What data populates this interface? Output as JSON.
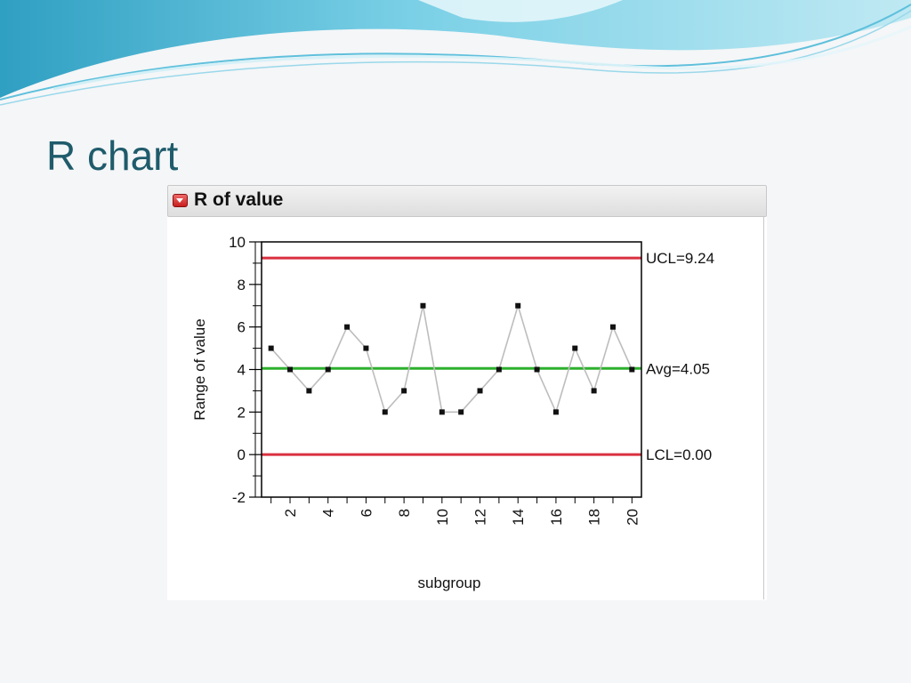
{
  "slide": {
    "title": "R chart"
  },
  "panel": {
    "title": "R of value"
  },
  "colors": {
    "limit_line": "#d9303f",
    "avg_line": "#2db02d",
    "series_line": "#bdbdbd",
    "marker": "#111111"
  },
  "chart_data": {
    "type": "line",
    "title": "R of value",
    "xlabel": "subgroup",
    "ylabel": "Range of value",
    "ylim": [
      -2,
      10
    ],
    "yticks": [
      -2,
      0,
      2,
      4,
      6,
      8,
      10
    ],
    "xlim": [
      0.5,
      20.5
    ],
    "xticks": [
      2,
      4,
      6,
      8,
      10,
      12,
      14,
      16,
      18,
      20
    ],
    "x": [
      1,
      2,
      3,
      4,
      5,
      6,
      7,
      8,
      9,
      10,
      11,
      12,
      13,
      14,
      15,
      16,
      17,
      18,
      19,
      20
    ],
    "y": [
      5,
      4,
      3,
      4,
      6,
      5,
      2,
      3,
      7,
      2,
      2,
      3,
      4,
      7,
      4,
      2,
      5,
      3,
      6,
      4
    ],
    "control_limits": [
      {
        "label": "UCL=9.24",
        "value": 9.24,
        "kind": "limit"
      },
      {
        "label": "Avg=4.05",
        "value": 4.05,
        "kind": "average"
      },
      {
        "label": "LCL=0.00",
        "value": 0,
        "kind": "limit"
      }
    ],
    "grid": false
  }
}
